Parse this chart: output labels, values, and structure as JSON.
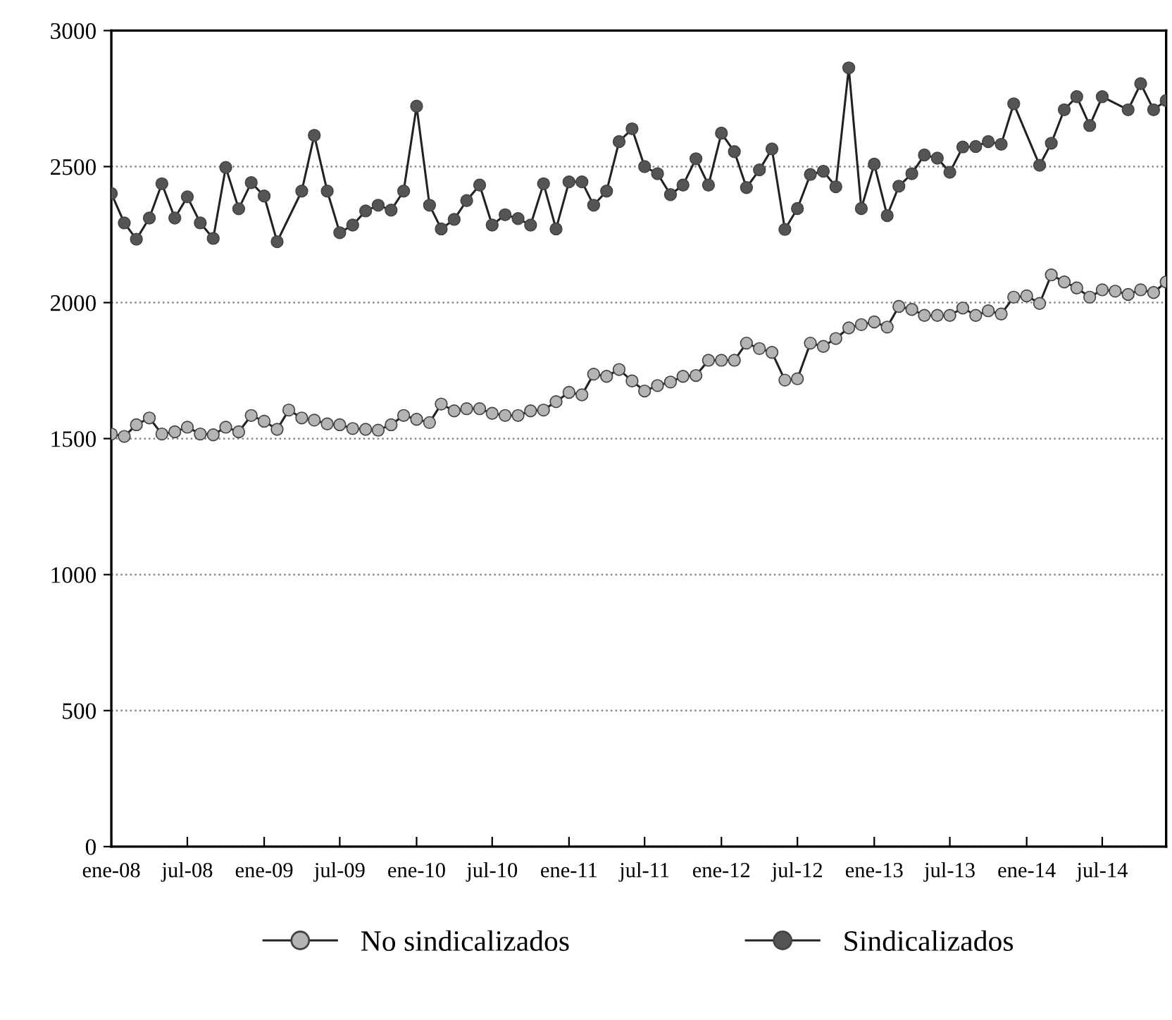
{
  "chart_data": {
    "type": "line",
    "x": [
      "2008-01",
      "2008-02",
      "2008-03",
      "2008-04",
      "2008-05",
      "2008-06",
      "2008-07",
      "2008-08",
      "2008-09",
      "2008-10",
      "2008-11",
      "2008-12",
      "2009-01",
      "2009-02",
      "2009-03",
      "2009-04",
      "2009-05",
      "2009-06",
      "2009-07",
      "2009-08",
      "2009-09",
      "2009-10",
      "2009-11",
      "2009-12",
      "2010-01",
      "2010-02",
      "2010-03",
      "2010-04",
      "2010-05",
      "2010-06",
      "2010-07",
      "2010-08",
      "2010-09",
      "2010-10",
      "2010-11",
      "2010-12",
      "2011-01",
      "2011-02",
      "2011-03",
      "2011-04",
      "2011-05",
      "2011-06",
      "2011-07",
      "2011-08",
      "2011-09",
      "2011-10",
      "2011-11",
      "2011-12",
      "2012-01",
      "2012-02",
      "2012-03",
      "2012-04",
      "2012-05",
      "2012-06",
      "2012-07",
      "2012-08",
      "2012-09",
      "2012-10",
      "2012-11",
      "2012-12",
      "2013-01",
      "2013-02",
      "2013-03",
      "2013-04",
      "2013-05",
      "2013-06",
      "2013-07",
      "2013-08",
      "2013-09",
      "2013-10",
      "2013-11",
      "2013-12",
      "2014-01",
      "2014-02",
      "2014-03",
      "2014-04",
      "2014-05",
      "2014-06",
      "2014-07",
      "2014-08",
      "2014-09",
      "2014-10",
      "2014-11",
      "2014-12"
    ],
    "series": [
      {
        "name": "No sindicalizados",
        "color": "#b4b4b4",
        "values": [
          1517,
          1508,
          1551,
          1576,
          1517,
          1525,
          1542,
          1517,
          1514,
          1542,
          1525,
          1585,
          1564,
          1534,
          1605,
          1576,
          1568,
          1554,
          1551,
          1537,
          1534,
          1531,
          1551,
          1585,
          1571,
          1559,
          1627,
          1602,
          1610,
          1610,
          1593,
          1585,
          1585,
          1602,
          1605,
          1636,
          1670,
          1661,
          1737,
          1729,
          1754,
          1712,
          1675,
          1695,
          1708,
          1729,
          1732,
          1788,
          1788,
          1788,
          1851,
          1831,
          1817,
          1715,
          1720,
          1851,
          1839,
          1868,
          1907,
          1919,
          1929,
          1910,
          1986,
          1975,
          1953,
          1953,
          1953,
          1980,
          1953,
          1970,
          1958,
          2020,
          2025,
          1997,
          2102,
          2076,
          2054,
          2020,
          2047,
          2042,
          2030,
          2047,
          2037,
          2076
        ]
      },
      {
        "name": "Sindicalizados",
        "color": "#555555",
        "x": [
          "2008-01",
          "2008-02",
          "2008-03",
          "2008-04",
          "2008-05",
          "2008-06",
          "2008-07",
          "2008-08",
          "2008-09",
          "2008-10",
          "2008-11",
          "2008-12",
          "2009-01",
          "2009-02",
          "2009-04",
          "2009-05",
          "2009-06",
          "2009-07",
          "2009-08",
          "2009-09",
          "2009-10",
          "2009-11",
          "2009-12",
          "2010-01",
          "2010-02",
          "2010-03",
          "2010-04",
          "2010-05",
          "2010-06",
          "2010-07",
          "2010-08",
          "2010-09",
          "2010-10",
          "2010-11",
          "2010-12",
          "2011-01",
          "2011-02",
          "2011-03",
          "2011-04",
          "2011-05",
          "2011-06",
          "2011-07",
          "2011-08",
          "2011-09",
          "2011-10",
          "2011-11",
          "2011-12",
          "2012-01",
          "2012-02",
          "2012-03",
          "2012-04",
          "2012-05",
          "2012-06",
          "2012-07",
          "2012-08",
          "2012-09",
          "2012-10",
          "2012-11",
          "2012-12",
          "2013-01",
          "2013-02",
          "2013-03",
          "2013-04",
          "2013-05",
          "2013-06",
          "2013-07",
          "2013-08",
          "2013-09",
          "2013-10",
          "2013-11",
          "2013-12",
          "2014-02",
          "2014-03",
          "2014-04",
          "2014-05",
          "2014-06",
          "2014-07",
          "2014-09",
          "2014-10",
          "2014-11",
          "2014-12"
        ],
        "values": [
          2401,
          2293,
          2233,
          2311,
          2437,
          2311,
          2389,
          2293,
          2236,
          2497,
          2345,
          2441,
          2392,
          2224,
          2410,
          2615,
          2410,
          2257,
          2285,
          2337,
          2358,
          2340,
          2410,
          2722,
          2358,
          2271,
          2306,
          2375,
          2432,
          2285,
          2323,
          2309,
          2285,
          2437,
          2271,
          2444,
          2444,
          2358,
          2410,
          2592,
          2639,
          2500,
          2474,
          2397,
          2432,
          2529,
          2432,
          2623,
          2555,
          2423,
          2488,
          2565,
          2269,
          2346,
          2471,
          2483,
          2426,
          2863,
          2346,
          2509,
          2320,
          2428,
          2474,
          2543,
          2531,
          2479,
          2572,
          2574,
          2592,
          2582,
          2731,
          2505,
          2586,
          2709,
          2757,
          2651,
          2757,
          2709,
          2805,
          2709,
          2743
        ]
      }
    ],
    "xlim": [
      "2008-01",
      "2014-12"
    ],
    "xticks": [
      {
        "value": "2008-01",
        "label": "ene-08"
      },
      {
        "value": "2008-07",
        "label": "jul-08"
      },
      {
        "value": "2009-01",
        "label": "ene-09"
      },
      {
        "value": "2009-07",
        "label": "jul-09"
      },
      {
        "value": "2010-01",
        "label": "ene-10"
      },
      {
        "value": "2010-07",
        "label": "jul-10"
      },
      {
        "value": "2011-01",
        "label": "ene-11"
      },
      {
        "value": "2011-07",
        "label": "jul-11"
      },
      {
        "value": "2012-01",
        "label": "ene-12"
      },
      {
        "value": "2012-07",
        "label": "jul-12"
      },
      {
        "value": "2013-01",
        "label": "ene-13"
      },
      {
        "value": "2013-07",
        "label": "jul-13"
      },
      {
        "value": "2014-01",
        "label": "ene-14"
      },
      {
        "value": "2014-07",
        "label": "jul-14"
      }
    ],
    "ylim": [
      0,
      3000
    ],
    "yticks": [
      0,
      500,
      1000,
      1500,
      2000,
      2500,
      3000
    ],
    "grid": "y",
    "legend": "bottom",
    "marker": "circle",
    "line_style": "solid"
  }
}
